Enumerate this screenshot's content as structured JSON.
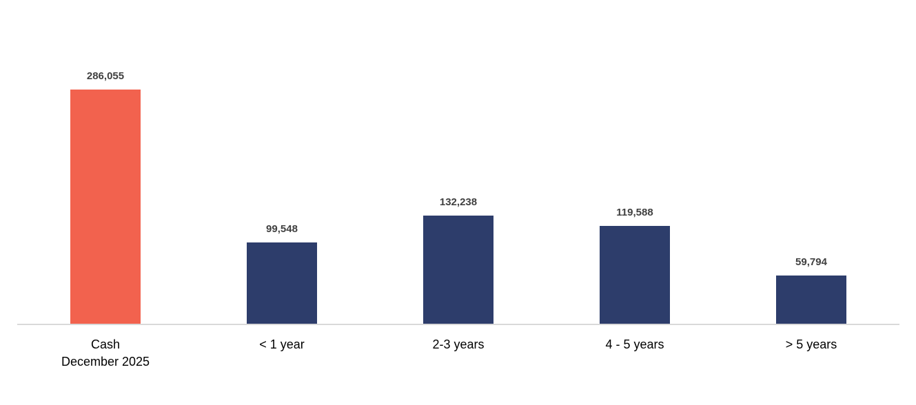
{
  "chart_data": {
    "type": "bar",
    "title": "",
    "xlabel": "",
    "ylabel": "",
    "grid": false,
    "legend": "none",
    "ylim": [
      0,
      395000
    ],
    "categories": [
      "Cash December 2025",
      "< 1 year",
      "2-3 years",
      "4 - 5 years",
      "> 5 years"
    ],
    "category_lines": [
      [
        "Cash",
        "December 2025"
      ],
      [
        "< 1 year"
      ],
      [
        "2-3 years"
      ],
      [
        "4 - 5 years"
      ],
      [
        "> 5 years"
      ]
    ],
    "values": [
      286055,
      99548,
      132238,
      119588,
      59794
    ],
    "value_labels": [
      "286,055",
      "99,548",
      "132,238",
      "119,588",
      "59,794"
    ],
    "bar_colors": [
      "#f2624e",
      "#2d3d6b",
      "#2d3d6b",
      "#2d3d6b",
      "#2d3d6b"
    ],
    "colors": {
      "highlight_bar": "#f2624e",
      "default_bar": "#2d3d6b",
      "data_label": "#404040",
      "category_label": "#000000",
      "axis_line": "#d9d9d9",
      "background": "#ffffff"
    }
  }
}
